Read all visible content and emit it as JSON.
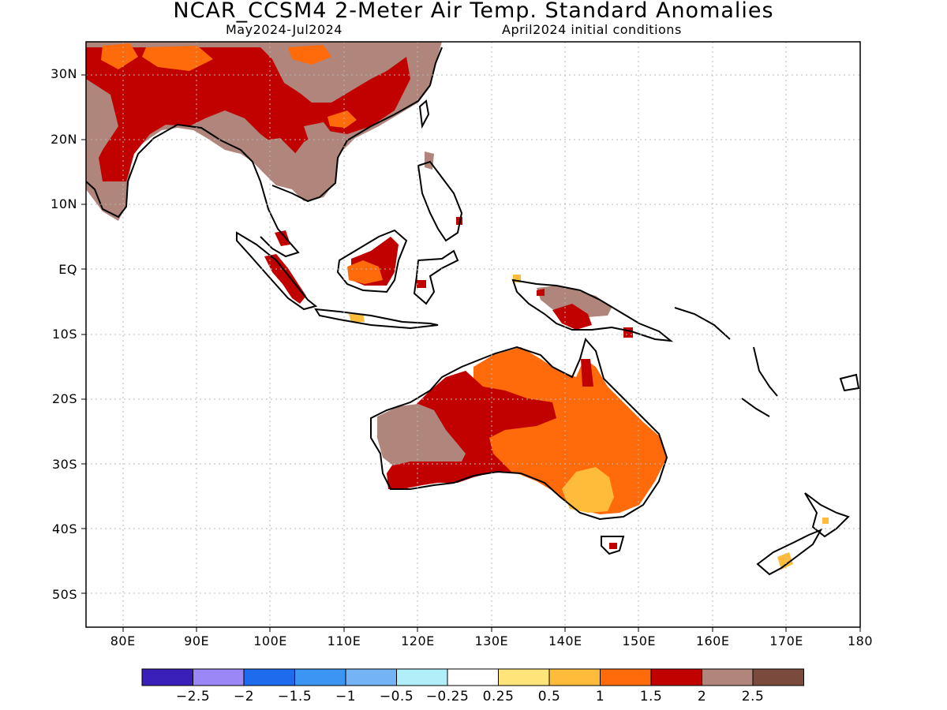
{
  "header": {
    "title": "NCAR_CCSM4 2-Meter Air Temp. Standard Anomalies",
    "period": "May2024-Jul2024",
    "initial_conditions": "April2024 initial conditions"
  },
  "map": {
    "lat_range": [
      -55,
      35
    ],
    "lon_range": [
      75,
      180
    ],
    "lat_labels": [
      {
        "lat": 30,
        "text": "30N"
      },
      {
        "lat": 20,
        "text": "20N"
      },
      {
        "lat": 10,
        "text": "10N"
      },
      {
        "lat": 0,
        "text": "EQ"
      },
      {
        "lat": -10,
        "text": "10S"
      },
      {
        "lat": -20,
        "text": "20S"
      },
      {
        "lat": -30,
        "text": "30S"
      },
      {
        "lat": -40,
        "text": "40S"
      },
      {
        "lat": -50,
        "text": "50S"
      }
    ],
    "lon_labels": [
      {
        "lon": 80,
        "text": "80E"
      },
      {
        "lon": 90,
        "text": "90E"
      },
      {
        "lon": 100,
        "text": "100E"
      },
      {
        "lon": 110,
        "text": "110E"
      },
      {
        "lon": 120,
        "text": "120E"
      },
      {
        "lon": 130,
        "text": "130E"
      },
      {
        "lon": 140,
        "text": "140E"
      },
      {
        "lon": 150,
        "text": "150E"
      },
      {
        "lon": 160,
        "text": "160E"
      },
      {
        "lon": 170,
        "text": "170E"
      },
      {
        "lon": 180,
        "text": "180"
      }
    ],
    "gridlines": true
  },
  "colorbar": {
    "colors": [
      "#3a1fb8",
      "#9b87f5",
      "#1f6bee",
      "#3c95f3",
      "#74b4f6",
      "#b0eefa",
      "#ffffff",
      "#ffe47a",
      "#ffbc3b",
      "#ff6a0a",
      "#c10000",
      "#b0857b",
      "#7a4b3d"
    ],
    "labels": [
      "−2.5",
      "−2",
      "−1.5",
      "−1",
      "−0.5",
      "−0.25",
      "0.25",
      "0.5",
      "1",
      "1.5",
      "2",
      "2.5"
    ]
  }
}
